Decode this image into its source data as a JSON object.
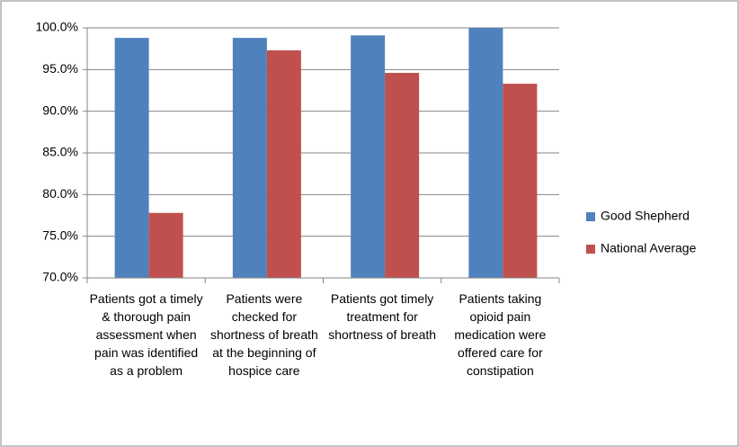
{
  "chart_data": {
    "type": "bar",
    "categories": [
      "Patients got a timely & thorough pain assessment when pain was identified as a problem",
      "Patients were checked for shortness of breath at the beginning of hospice care",
      "Patients got timely treatment for shortness of breath",
      "Patients taking opioid pain medication were offered care for constipation"
    ],
    "series": [
      {
        "name": "Good Shepherd",
        "color": "#4f81bd",
        "values": [
          98.8,
          98.8,
          99.1,
          100
        ]
      },
      {
        "name": "National Average",
        "color": "#c0504d",
        "values": [
          77.8,
          97.3,
          94.6,
          93.3
        ]
      }
    ],
    "ylim": [
      70,
      100
    ],
    "yticks": [
      {
        "value": 70,
        "label": "70.0%"
      },
      {
        "value": 75,
        "label": "75.0%"
      },
      {
        "value": 80,
        "label": "80.0%"
      },
      {
        "value": 85,
        "label": "85.0%"
      },
      {
        "value": 90,
        "label": "90.0%"
      },
      {
        "value": 95,
        "label": "95.0%"
      },
      {
        "value": 100,
        "label": "100.0%"
      }
    ],
    "grid": true,
    "legend": "right"
  }
}
